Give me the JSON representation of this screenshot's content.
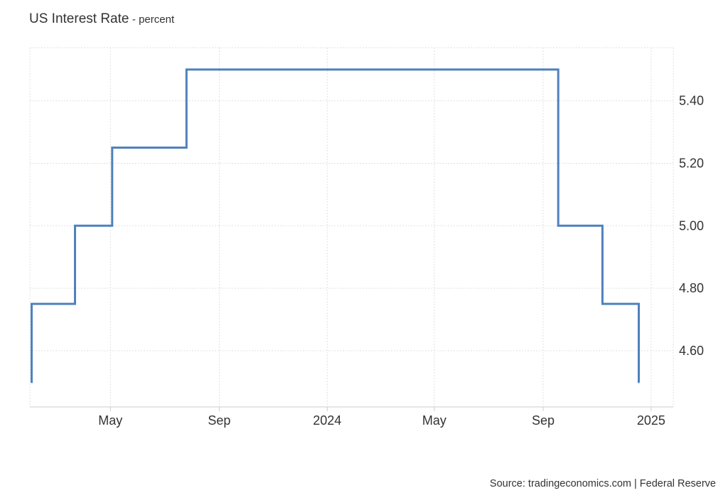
{
  "chart_data": {
    "type": "line",
    "step": true,
    "title": "US Interest Rate",
    "subtitle": "percent",
    "source": "Source: tradingeconomics.com | Federal Reserve",
    "x": [
      "2023-01-31",
      "2023-02-01",
      "2023-03-22",
      "2023-05-03",
      "2023-07-26",
      "2024-09-18",
      "2024-11-07",
      "2024-12-18",
      "2024-12-19"
    ],
    "values": [
      4.5,
      4.75,
      5.0,
      5.25,
      5.5,
      5.0,
      4.75,
      4.5,
      4.5
    ],
    "xticks": [
      {
        "date": "2023-05-01",
        "label": "May"
      },
      {
        "date": "2023-09-01",
        "label": "Sep"
      },
      {
        "date": "2024-01-01",
        "label": "2024"
      },
      {
        "date": "2024-05-01",
        "label": "May"
      },
      {
        "date": "2024-09-01",
        "label": "Sep"
      },
      {
        "date": "2025-01-01",
        "label": "2025"
      }
    ],
    "yticks": [
      4.6,
      4.8,
      5.0,
      5.2,
      5.4
    ],
    "ylim": [
      4.42,
      5.57
    ],
    "xlim": [
      "2023-01-30",
      "2025-01-26"
    ],
    "grid": true,
    "y_axis_side": "right",
    "line_color": "#4f81bd",
    "grid_color": "#e0e0e0"
  }
}
